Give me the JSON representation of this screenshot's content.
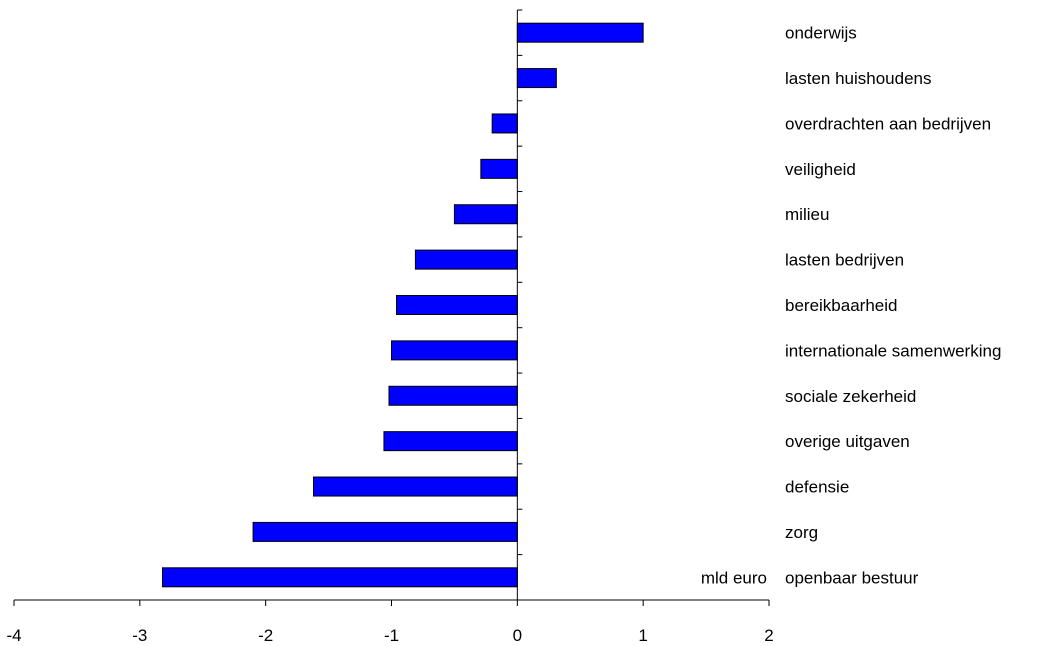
{
  "chart_data": {
    "type": "bar",
    "orientation": "horizontal",
    "categories": [
      "onderwijs",
      "lasten huishoudens",
      "overdrachten aan bedrijven",
      "veiligheid",
      "milieu",
      "lasten bedrijven",
      "bereikbaarheid",
      "internationale samenwerking",
      "sociale zekerheid",
      "overige uitgaven",
      "defensie",
      "zorg",
      "openbaar  bestuur"
    ],
    "values": [
      1.0,
      0.31,
      -0.2,
      -0.29,
      -0.5,
      -0.81,
      -0.96,
      -1.0,
      -1.02,
      -1.06,
      -1.62,
      -2.1,
      -2.82
    ],
    "xlim": [
      -4,
      2
    ],
    "xticks": [
      "-4",
      "-3",
      "-2",
      "-1",
      "0",
      "1",
      "2"
    ],
    "unit_label": "mld euro",
    "bar_color": "#0000ff",
    "grid": false,
    "legend": "none"
  }
}
